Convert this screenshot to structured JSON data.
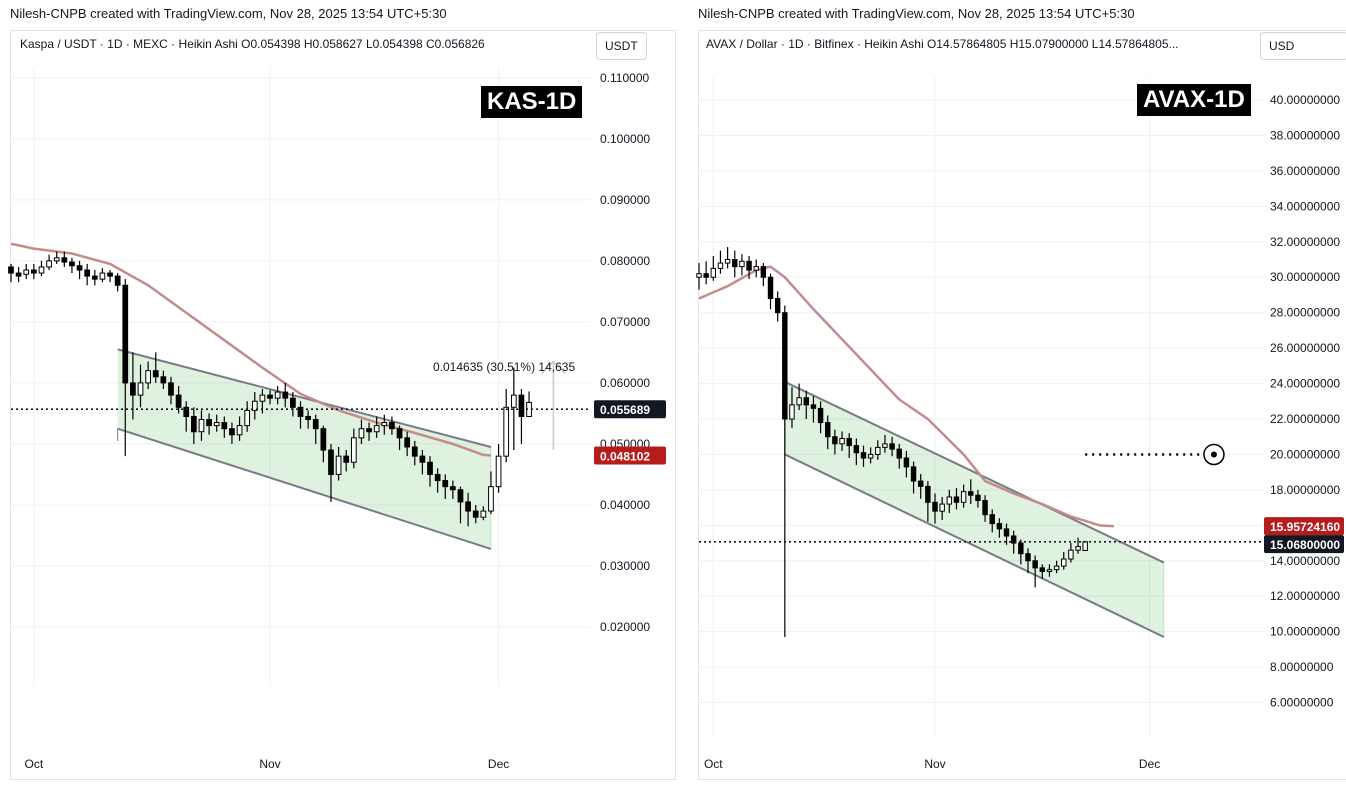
{
  "chart_data": [
    {
      "type": "candlestick",
      "credit": "Nilesh-CNPB created with TradingView.com, Nov 28, 2025 13:54 UTC+5:30",
      "legend": "Kaspa / USDT · 1D · MEXC · Heikin Ashi  O0.054398  H0.058627  L0.054398  C0.056826",
      "currency": "USDT",
      "badge": "KAS-1D",
      "yticks": [
        "0.110000",
        "0.100000",
        "0.090000",
        "0.080000",
        "0.070000",
        "0.060000",
        "0.050000",
        "0.040000",
        "0.030000",
        "0.020000"
      ],
      "ytick_values": [
        0.11,
        0.1,
        0.09,
        0.08,
        0.07,
        0.06,
        0.05,
        0.04,
        0.03,
        0.02
      ],
      "ylim": [
        0.0105,
        0.1116
      ],
      "xticks": [
        {
          "label": "Oct",
          "day": 0
        },
        {
          "label": "Nov",
          "day": 31
        },
        {
          "label": "Dec",
          "day": 61
        }
      ],
      "xlim": [
        -3,
        73
      ],
      "last_price": 0.055689,
      "last_price_label": "0.055689",
      "ma_price": 0.048102,
      "ma_price_label": "0.048102",
      "measure_label": "0.014635 (30.51%) 14,635",
      "measure": {
        "day": 64,
        "from": 0.049,
        "to": 0.0635
      },
      "channel": {
        "upper": [
          [
            11,
            0.0655
          ],
          [
            60,
            0.0495
          ]
        ],
        "lower": [
          [
            11,
            0.0525
          ],
          [
            60,
            0.0328
          ]
        ],
        "lower_start_upper": 0.0505
      },
      "ma": [
        [
          -3,
          0.0828
        ],
        [
          0,
          0.082
        ],
        [
          5,
          0.0812
        ],
        [
          10,
          0.0795
        ],
        [
          15,
          0.076
        ],
        [
          20,
          0.0715
        ],
        [
          25,
          0.067
        ],
        [
          30,
          0.0625
        ],
        [
          35,
          0.0582
        ],
        [
          40,
          0.0555
        ],
        [
          45,
          0.0535
        ],
        [
          50,
          0.0518
        ],
        [
          55,
          0.05
        ],
        [
          59,
          0.0482
        ],
        [
          60,
          0.0481
        ]
      ],
      "candles": [
        [
          -3,
          0.079,
          0.078,
          0.0795,
          0.0765
        ],
        [
          -2,
          0.078,
          0.0775,
          0.079,
          0.0765
        ],
        [
          -1,
          0.0778,
          0.0785,
          0.0795,
          0.077
        ],
        [
          0,
          0.0785,
          0.078,
          0.0795,
          0.077
        ],
        [
          1,
          0.078,
          0.079,
          0.08,
          0.0775
        ],
        [
          2,
          0.079,
          0.08,
          0.081,
          0.0785
        ],
        [
          3,
          0.08,
          0.0805,
          0.0815,
          0.0795
        ],
        [
          4,
          0.0805,
          0.0798,
          0.0815,
          0.079
        ],
        [
          5,
          0.0798,
          0.0792,
          0.0805,
          0.078
        ],
        [
          6,
          0.0792,
          0.0785,
          0.08,
          0.077
        ],
        [
          7,
          0.0785,
          0.0775,
          0.0795,
          0.076
        ],
        [
          8,
          0.0775,
          0.077,
          0.0785,
          0.076
        ],
        [
          9,
          0.077,
          0.078,
          0.0788,
          0.0765
        ],
        [
          10,
          0.078,
          0.0775,
          0.0785,
          0.0765
        ],
        [
          11,
          0.0775,
          0.076,
          0.078,
          0.075
        ],
        [
          12,
          0.076,
          0.06,
          0.077,
          0.048
        ],
        [
          13,
          0.06,
          0.058,
          0.065,
          0.054
        ],
        [
          14,
          0.058,
          0.06,
          0.063,
          0.056
        ],
        [
          15,
          0.06,
          0.062,
          0.0635,
          0.059
        ],
        [
          16,
          0.062,
          0.061,
          0.065,
          0.06
        ],
        [
          17,
          0.061,
          0.06,
          0.062,
          0.059
        ],
        [
          18,
          0.06,
          0.058,
          0.061,
          0.0565
        ],
        [
          19,
          0.058,
          0.056,
          0.0595,
          0.055
        ],
        [
          20,
          0.056,
          0.0545,
          0.057,
          0.052
        ],
        [
          21,
          0.0545,
          0.052,
          0.056,
          0.05
        ],
        [
          22,
          0.052,
          0.054,
          0.0555,
          0.0505
        ],
        [
          23,
          0.054,
          0.053,
          0.055,
          0.0515
        ],
        [
          24,
          0.053,
          0.0535,
          0.0548,
          0.052
        ],
        [
          25,
          0.0535,
          0.0525,
          0.0545,
          0.051
        ],
        [
          26,
          0.0525,
          0.0515,
          0.0535,
          0.05
        ],
        [
          27,
          0.0515,
          0.053,
          0.0545,
          0.0505
        ],
        [
          28,
          0.053,
          0.0555,
          0.057,
          0.052
        ],
        [
          29,
          0.0555,
          0.057,
          0.0585,
          0.054
        ],
        [
          30,
          0.057,
          0.058,
          0.059,
          0.055
        ],
        [
          31,
          0.058,
          0.0575,
          0.0588,
          0.0565
        ],
        [
          32,
          0.0575,
          0.0585,
          0.0595,
          0.0565
        ],
        [
          33,
          0.0585,
          0.0575,
          0.06,
          0.056
        ],
        [
          34,
          0.0575,
          0.056,
          0.0585,
          0.0545
        ],
        [
          35,
          0.056,
          0.0545,
          0.057,
          0.0525
        ],
        [
          36,
          0.0545,
          0.054,
          0.0555,
          0.0525
        ],
        [
          37,
          0.054,
          0.0525,
          0.0548,
          0.05
        ],
        [
          38,
          0.0525,
          0.049,
          0.053,
          0.047
        ],
        [
          39,
          0.049,
          0.045,
          0.05,
          0.0405
        ],
        [
          40,
          0.045,
          0.048,
          0.0495,
          0.044
        ],
        [
          41,
          0.048,
          0.047,
          0.049,
          0.0455
        ],
        [
          42,
          0.047,
          0.051,
          0.0525,
          0.046
        ],
        [
          43,
          0.051,
          0.0525,
          0.054,
          0.05
        ],
        [
          44,
          0.0525,
          0.052,
          0.0535,
          0.0505
        ],
        [
          45,
          0.052,
          0.053,
          0.0545,
          0.051
        ],
        [
          46,
          0.053,
          0.0535,
          0.0548,
          0.0515
        ],
        [
          47,
          0.0535,
          0.0525,
          0.0545,
          0.0515
        ],
        [
          48,
          0.0525,
          0.051,
          0.053,
          0.049
        ],
        [
          49,
          0.051,
          0.0495,
          0.052,
          0.048
        ],
        [
          50,
          0.0495,
          0.048,
          0.0505,
          0.0465
        ],
        [
          51,
          0.048,
          0.047,
          0.049,
          0.045
        ],
        [
          52,
          0.047,
          0.045,
          0.048,
          0.043
        ],
        [
          53,
          0.045,
          0.044,
          0.046,
          0.042
        ],
        [
          54,
          0.044,
          0.043,
          0.045,
          0.041
        ],
        [
          55,
          0.043,
          0.0425,
          0.044,
          0.041
        ],
        [
          56,
          0.0425,
          0.0405,
          0.043,
          0.037
        ],
        [
          57,
          0.0405,
          0.039,
          0.042,
          0.0365
        ],
        [
          58,
          0.039,
          0.038,
          0.04,
          0.037
        ],
        [
          59,
          0.038,
          0.039,
          0.0398,
          0.0375
        ],
        [
          60,
          0.039,
          0.043,
          0.0455,
          0.0385
        ],
        [
          61,
          0.043,
          0.048,
          0.05,
          0.042
        ],
        [
          62,
          0.048,
          0.056,
          0.059,
          0.047
        ],
        [
          63,
          0.056,
          0.058,
          0.0625,
          0.049
        ],
        [
          64,
          0.058,
          0.0545,
          0.059,
          0.05
        ],
        [
          65,
          0.0545,
          0.0568,
          0.0586,
          0.0544
        ]
      ]
    },
    {
      "type": "candlestick",
      "credit": "Nilesh-CNPB created with TradingView.com, Nov 28, 2025 13:54 UTC+5:30",
      "legend": "AVAX / Dollar · 1D · Bitfinex · Heikin Ashi  O14.57864805  H15.07900000  L14.57864805...",
      "currency": "USD",
      "badge": "AVAX-1D",
      "yticks": [
        "40.00000000",
        "38.00000000",
        "36.00000000",
        "34.00000000",
        "32.00000000",
        "30.00000000",
        "28.00000000",
        "26.00000000",
        "24.00000000",
        "22.00000000",
        "20.00000000",
        "18.00000000",
        "16.00000000",
        "14.00000000",
        "12.00000000",
        "10.00000000",
        "8.00000000",
        "6.00000000"
      ],
      "ytick_values": [
        40,
        38,
        36,
        34,
        32,
        30,
        28,
        26,
        24,
        22,
        20,
        18,
        16,
        14,
        12,
        10,
        8,
        6
      ],
      "ylim": [
        4.0,
        41.3
      ],
      "xticks": [
        {
          "label": "Oct",
          "day": 0
        },
        {
          "label": "Nov",
          "day": 31
        },
        {
          "label": "Dec",
          "day": 61
        }
      ],
      "xlim": [
        -2,
        77
      ],
      "last_price": 15.068,
      "last_price_label": "15.06800000",
      "ma_price": 15.957,
      "ma_price_label": "15.95724160",
      "target": 20.0,
      "target_from_day": 52,
      "target_to_day": 70,
      "channel": {
        "upper": [
          [
            10,
            24.1
          ],
          [
            63,
            13.9
          ]
        ],
        "lower": [
          [
            10,
            20.0
          ],
          [
            63,
            9.7
          ]
        ],
        "lower_start_upper": 24.1
      },
      "ma": [
        [
          -2,
          28.8
        ],
        [
          2,
          29.5
        ],
        [
          6,
          30.4
        ],
        [
          8,
          30.6
        ],
        [
          10,
          30.0
        ],
        [
          14,
          28.2
        ],
        [
          18,
          26.5
        ],
        [
          22,
          24.8
        ],
        [
          26,
          23.1
        ],
        [
          30,
          22.0
        ],
        [
          35,
          20.0
        ],
        [
          38,
          18.5
        ],
        [
          42,
          17.8
        ],
        [
          46,
          17.2
        ],
        [
          50,
          16.5
        ],
        [
          54,
          16.0
        ],
        [
          56,
          15.95
        ]
      ],
      "candles": [
        [
          -2,
          30.0,
          30.2,
          30.8,
          29.3
        ],
        [
          -1,
          30.2,
          30.0,
          30.9,
          29.6
        ],
        [
          0,
          30.0,
          30.5,
          31.2,
          29.8
        ],
        [
          1,
          30.5,
          30.8,
          31.5,
          30.2
        ],
        [
          2,
          30.8,
          31.0,
          31.7,
          30.5
        ],
        [
          3,
          31.0,
          30.6,
          31.5,
          30.0
        ],
        [
          4,
          30.6,
          30.9,
          31.3,
          30.1
        ],
        [
          5,
          30.9,
          30.4,
          31.2,
          29.9
        ],
        [
          6,
          30.4,
          30.6,
          31.0,
          30.0
        ],
        [
          7,
          30.6,
          30.0,
          30.8,
          29.5
        ],
        [
          8,
          30.0,
          28.8,
          30.2,
          28.2
        ],
        [
          9,
          28.8,
          28.0,
          29.2,
          27.5
        ],
        [
          10,
          28.0,
          22.0,
          28.4,
          9.7
        ],
        [
          11,
          22.0,
          22.8,
          23.8,
          21.5
        ],
        [
          12,
          22.8,
          23.2,
          24.0,
          22.5
        ],
        [
          13,
          23.2,
          22.8,
          23.6,
          22.0
        ],
        [
          14,
          22.8,
          22.6,
          23.3,
          21.8
        ],
        [
          15,
          22.6,
          21.8,
          23.0,
          21.2
        ],
        [
          16,
          21.8,
          21.0,
          22.2,
          20.3
        ],
        [
          17,
          21.0,
          20.6,
          21.4,
          20.0
        ],
        [
          18,
          20.6,
          20.9,
          21.3,
          20.2
        ],
        [
          19,
          20.9,
          20.5,
          21.2,
          19.8
        ],
        [
          20,
          20.5,
          20.1,
          20.9,
          19.4
        ],
        [
          21,
          20.1,
          19.8,
          20.5,
          19.3
        ],
        [
          22,
          19.8,
          20.0,
          20.4,
          19.5
        ],
        [
          23,
          20.0,
          20.4,
          20.8,
          19.7
        ],
        [
          24,
          20.4,
          20.6,
          21.1,
          20.1
        ],
        [
          25,
          20.6,
          20.3,
          21.0,
          19.9
        ],
        [
          26,
          20.3,
          19.8,
          20.6,
          19.2
        ],
        [
          27,
          19.8,
          19.3,
          20.2,
          18.7
        ],
        [
          28,
          19.3,
          18.5,
          19.6,
          17.8
        ],
        [
          29,
          18.5,
          18.2,
          18.9,
          17.5
        ],
        [
          30,
          18.2,
          17.3,
          18.5,
          16.2
        ],
        [
          31,
          17.3,
          16.8,
          17.8,
          16.1
        ],
        [
          32,
          16.8,
          17.2,
          17.6,
          16.3
        ],
        [
          33,
          17.2,
          17.6,
          18.0,
          16.7
        ],
        [
          34,
          17.6,
          17.3,
          18.1,
          16.9
        ],
        [
          35,
          17.3,
          17.9,
          18.3,
          17.0
        ],
        [
          36,
          17.9,
          17.7,
          18.6,
          17.2
        ],
        [
          37,
          17.7,
          17.4,
          18.0,
          17.0
        ],
        [
          38,
          17.4,
          16.6,
          17.7,
          16.2
        ],
        [
          39,
          16.6,
          16.1,
          16.9,
          15.6
        ],
        [
          40,
          16.1,
          15.8,
          16.4,
          15.3
        ],
        [
          41,
          15.8,
          15.4,
          16.1,
          14.9
        ],
        [
          42,
          15.4,
          15.0,
          15.7,
          14.4
        ],
        [
          43,
          15.0,
          14.4,
          15.2,
          13.8
        ],
        [
          44,
          14.4,
          14.0,
          14.7,
          13.3
        ],
        [
          45,
          14.0,
          13.6,
          14.3,
          12.5
        ],
        [
          46,
          13.6,
          13.4,
          13.8,
          13.0
        ],
        [
          47,
          13.4,
          13.5,
          13.8,
          13.1
        ],
        [
          48,
          13.5,
          13.7,
          14.0,
          13.3
        ],
        [
          49,
          13.7,
          14.1,
          14.5,
          13.5
        ],
        [
          50,
          14.1,
          14.6,
          15.0,
          13.9
        ],
        [
          51,
          14.6,
          14.8,
          15.3,
          14.4
        ],
        [
          52,
          14.58,
          15.07,
          15.08,
          14.58
        ]
      ]
    }
  ]
}
